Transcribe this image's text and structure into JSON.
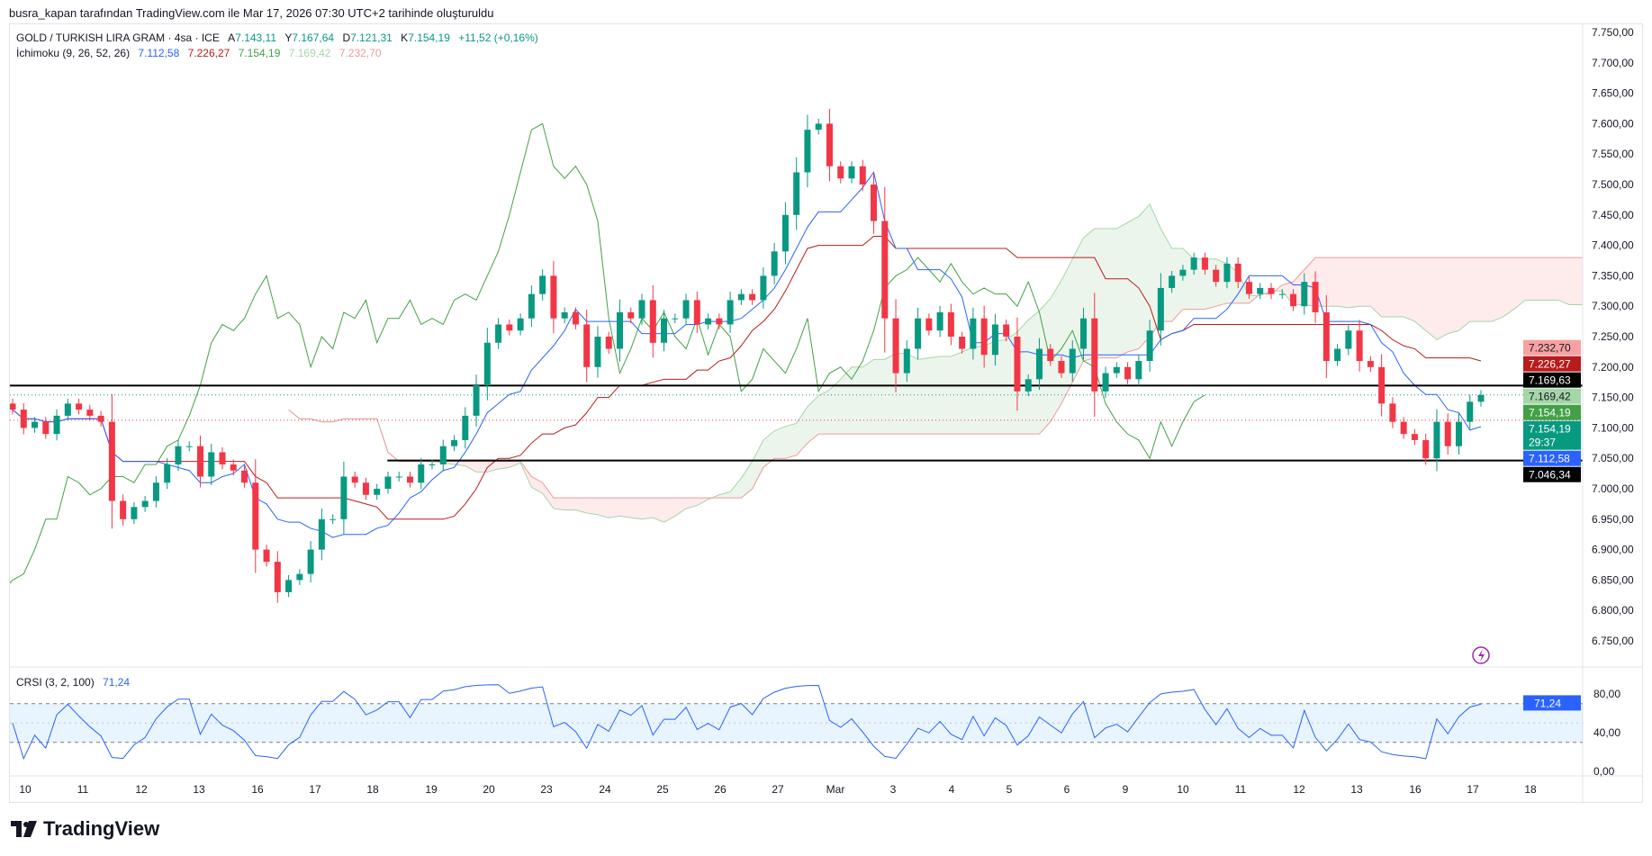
{
  "credit": "busra_kapan tarafından TradingView.com ile Mar 17, 2026 07:30 UTC+2 tarihinde oluşturuldu",
  "symbol": {
    "title": "GOLD / TURKISH LIRA GRAM · 4sa · ICE",
    "open_label": "A",
    "open": "7.143,11",
    "high_label": "Y",
    "high": "7.167,64",
    "low_label": "D",
    "low": "7.121,31",
    "close_label": "K",
    "close": "7.154,19",
    "change": "+11,52 (+0,16%)"
  },
  "ichimoku": {
    "label": "İchimoku (9, 26, 52, 26)",
    "tenkan": "7.112,58",
    "kijun": "7.226,27",
    "lagging": "7.154,19",
    "spanA": "7.169,42",
    "spanB": "7.232,70"
  },
  "crsi": {
    "label": "CRSI (3, 2, 100)",
    "value": "71,24",
    "axis": [
      "80,00",
      "40,00",
      "0,00"
    ]
  },
  "price_axis": [
    "7.750,00",
    "7.700,00",
    "7.650,00",
    "7.600,00",
    "7.550,00",
    "7.500,00",
    "7.450,00",
    "7.400,00",
    "7.350,00",
    "7.300,00",
    "7.250,00",
    "7.200,00",
    "7.150,00",
    "7.100,00",
    "7.050,00",
    "7.000,00",
    "6.950,00",
    "6.900,00",
    "6.850,00",
    "6.800,00",
    "6.750,00"
  ],
  "price_tags": [
    {
      "text": "7.232,70",
      "price": 7232.7,
      "bg": "#f7a1a1",
      "fg": "#131722"
    },
    {
      "text": "7.226,27",
      "price": 7210,
      "bg": "#b71c1c",
      "fg": "#ffffff"
    },
    {
      "text": "7.169,63",
      "price": 7187,
      "bg": "#000000",
      "fg": "#ffffff"
    },
    {
      "text": "7.169,42",
      "price": 7164,
      "bg": "#a5d6a7",
      "fg": "#131722"
    },
    {
      "text": "7.154,19",
      "price": 7141,
      "bg": "#43a047",
      "fg": "#ffffff"
    },
    {
      "text": "7.154,19",
      "price": 7118,
      "bg": "#089981",
      "fg": "#ffffff",
      "sub": "29:37"
    },
    {
      "text": "7.112,58",
      "price": 7095,
      "bg": "#2962ff",
      "fg": "#ffffff"
    },
    {
      "text": "7.046,34",
      "price": 7046.34,
      "bg": "#000000",
      "fg": "#ffffff"
    }
  ],
  "hlines": [
    {
      "price": 7169.63,
      "from": 0
    },
    {
      "price": 7046.34,
      "from": 0.24
    }
  ],
  "time_axis": [
    "10",
    "11",
    "12",
    "13",
    "16",
    "17",
    "18",
    "19",
    "20",
    "23",
    "24",
    "25",
    "26",
    "27",
    "Mar",
    "3",
    "4",
    "5",
    "6",
    "9",
    "10",
    "11",
    "12",
    "13",
    "16",
    "17",
    "18"
  ],
  "colors": {
    "up": "#089981",
    "down": "#f23645",
    "tenkan": "#2962ff",
    "kijun": "#b71c1c",
    "lagging": "#43a047",
    "spanA": "#a5d6a7",
    "spanB": "#ef9a9a",
    "crsi": "#2962ff"
  },
  "chart_data": {
    "type": "candlestick",
    "ylim": [
      6720,
      7770
    ],
    "close": [
      7130,
      7100,
      7110,
      7090,
      7120,
      7140,
      7130,
      7120,
      7110,
      6980,
      6950,
      6970,
      6980,
      7010,
      7040,
      7070,
      7070,
      7020,
      7060,
      7040,
      7030,
      7010,
      6900,
      6880,
      6830,
      6850,
      6860,
      6900,
      6950,
      6950,
      7020,
      7010,
      6990,
      7000,
      7020,
      7020,
      7010,
      7040,
      7040,
      7070,
      7080,
      7120,
      7170,
      7240,
      7270,
      7260,
      7280,
      7320,
      7350,
      7280,
      7290,
      7270,
      7200,
      7250,
      7230,
      7290,
      7280,
      7310,
      7240,
      7280,
      7280,
      7310,
      7270,
      7280,
      7270,
      7310,
      7320,
      7310,
      7350,
      7390,
      7450,
      7520,
      7590,
      7600,
      7530,
      7510,
      7530,
      7500,
      7440,
      7280,
      7190,
      7230,
      7280,
      7260,
      7290,
      7250,
      7230,
      7280,
      7220,
      7270,
      7250,
      7160,
      7180,
      7230,
      7210,
      7190,
      7230,
      7280,
      7160,
      7190,
      7200,
      7180,
      7210,
      7260,
      7330,
      7350,
      7360,
      7380,
      7360,
      7340,
      7370,
      7340,
      7320,
      7330,
      7320,
      7320,
      7300,
      7340,
      7290,
      7210,
      7230,
      7260,
      7210,
      7200,
      7140,
      7110,
      7090,
      7080,
      7050,
      7110,
      7070,
      7110,
      7143,
      7154.19
    ]
  }
}
